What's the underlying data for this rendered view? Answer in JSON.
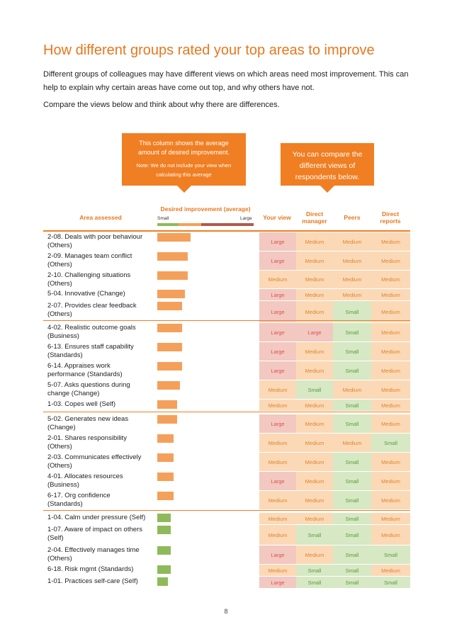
{
  "page": {
    "title": "How different groups rated your top areas to improve",
    "intro1_line1": "Different groups of colleagues may have different views on which areas need most improvement. This can",
    "intro1_line2": "help to explain why certain areas have come out top, and why others have not.",
    "intro2": "Compare the views below and think about why there are differences.",
    "page_number": "8"
  },
  "callouts": {
    "left_line1": "This column shows the average",
    "left_line2": "amount of desired improvement.",
    "left_note1": "Note: We do not include your view when",
    "left_note2": "calculating this average",
    "right_line1": "You can compare the",
    "right_line2": "different views of",
    "right_line3": "respondents below."
  },
  "table": {
    "headers": {
      "area": "Area assessed",
      "desired": "Desired improvement (average)",
      "scale_small": "Small",
      "scale_large": "Large",
      "your_view": "Your view",
      "manager_1": "Direct",
      "manager_2": "manager",
      "peers": "Peers",
      "reports_1": "Direct",
      "reports_2": "reports"
    },
    "colors": {
      "bar_orange": "#f5a05a",
      "bar_green": "#8fba5a",
      "large": "#f2c8c0",
      "medium": "#fbd9b7",
      "small": "#d6e8c4"
    },
    "rows": [
      {
        "l1": "2-08. Deals with poor behaviour",
        "l2": "(Others)",
        "level": 0.46,
        "bar": "orange",
        "your": "Large",
        "manager": "Medium",
        "peers": "Medium",
        "reports": "Medium"
      },
      {
        "l1": "2-09. Manages team conflict",
        "l2": "(Others)",
        "level": 0.42,
        "bar": "orange",
        "your": "Large",
        "manager": "Medium",
        "peers": "Medium",
        "reports": "Medium"
      },
      {
        "l1": "2-10. Challenging situations",
        "l2": "(Others)",
        "level": 0.42,
        "bar": "orange",
        "your": "Medium",
        "manager": "Medium",
        "peers": "Medium",
        "reports": "Medium"
      },
      {
        "l1": "5-04. Innovative (Change)",
        "l2": "",
        "level": 0.38,
        "bar": "orange",
        "your": "Large",
        "manager": "Medium",
        "peers": "Medium",
        "reports": "Medium"
      },
      {
        "l1": "2-07. Provides clear feedback",
        "l2": "(Others)",
        "level": 0.34,
        "bar": "orange",
        "your": "Large",
        "manager": "Medium",
        "peers": "Small",
        "reports": "Medium"
      },
      {
        "l1": "4-02. Realistic outcome goals",
        "l2": "(Business)",
        "level": 0.34,
        "bar": "orange",
        "your": "Large",
        "manager": "Large",
        "peers": "Small",
        "reports": "Medium"
      },
      {
        "l1": "6-13. Ensures staff capability",
        "l2": "(Standards)",
        "level": 0.34,
        "bar": "orange",
        "your": "Large",
        "manager": "Medium",
        "peers": "Small",
        "reports": "Medium"
      },
      {
        "l1": "6-14. Appraises work",
        "l2": "performance (Standards)",
        "level": 0.34,
        "bar": "orange",
        "your": "Large",
        "manager": "Medium",
        "peers": "Small",
        "reports": "Medium"
      },
      {
        "l1": "5-07. Asks questions during",
        "l2": "change (Change)",
        "level": 0.31,
        "bar": "orange",
        "your": "Medium",
        "manager": "Small",
        "peers": "Medium",
        "reports": "Medium"
      },
      {
        "l1": "1-03. Copes well (Self)",
        "l2": "",
        "level": 0.27,
        "bar": "orange",
        "your": "Medium",
        "manager": "Medium",
        "peers": "Small",
        "reports": "Medium"
      },
      {
        "l1": "5-02. Generates new ideas",
        "l2": "(Change)",
        "level": 0.27,
        "bar": "orange",
        "your": "Large",
        "manager": "Medium",
        "peers": "Small",
        "reports": "Medium"
      },
      {
        "l1": "2-01. Shares responsibility",
        "l2": "(Others)",
        "level": 0.23,
        "bar": "orange",
        "your": "Medium",
        "manager": "Medium",
        "peers": "Medium",
        "reports": "Small"
      },
      {
        "l1": "2-03. Communicates effectively",
        "l2": "(Others)",
        "level": 0.23,
        "bar": "orange",
        "your": "Medium",
        "manager": "Medium",
        "peers": "Small",
        "reports": "Medium"
      },
      {
        "l1": "4-01. Allocates resources",
        "l2": "(Business)",
        "level": 0.23,
        "bar": "orange",
        "your": "Large",
        "manager": "Medium",
        "peers": "Small",
        "reports": "Medium"
      },
      {
        "l1": "6-17. Org confidence",
        "l2": "(Standards)",
        "level": 0.23,
        "bar": "orange",
        "your": "Medium",
        "manager": "Medium",
        "peers": "Small",
        "reports": "Medium"
      },
      {
        "l1": "1-04. Calm under pressure (Self)",
        "l2": "",
        "level": 0.19,
        "bar": "green",
        "your": "Medium",
        "manager": "Medium",
        "peers": "Small",
        "reports": "Medium"
      },
      {
        "l1": "1-07. Aware of impact on others",
        "l2": "(Self)",
        "level": 0.19,
        "bar": "green",
        "your": "Medium",
        "manager": "Small",
        "peers": "Small",
        "reports": "Medium"
      },
      {
        "l1": "2-04. Effectively manages time",
        "l2": "(Others)",
        "level": 0.19,
        "bar": "green",
        "your": "Large",
        "manager": "Medium",
        "peers": "Small",
        "reports": "Small"
      },
      {
        "l1": "6-18. Risk mgmt (Standards)",
        "l2": "",
        "level": 0.19,
        "bar": "green",
        "your": "Medium",
        "manager": "Small",
        "peers": "Small",
        "reports": "Medium"
      },
      {
        "l1": "1-01. Practices self-care (Self)",
        "l2": "",
        "level": 0.15,
        "bar": "green",
        "your": "Large",
        "manager": "Small",
        "peers": "Small",
        "reports": "Small"
      }
    ]
  }
}
